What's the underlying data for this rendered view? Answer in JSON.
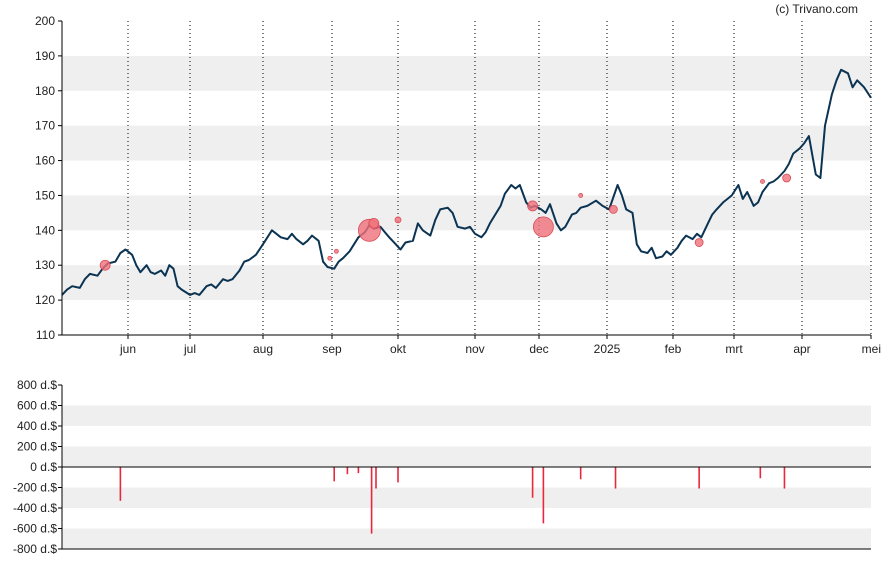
{
  "credit": "(c) Trivano.com",
  "colors": {
    "price_line": "#0b3352",
    "marker": "#f0707a",
    "marker_stroke": "#d94a56",
    "bar": "#e8283c",
    "band": "#efefef",
    "axis": "#000000",
    "vgrid": "#000000"
  },
  "chart_data": [
    {
      "type": "line",
      "title": "",
      "xlabel": "",
      "ylabel": "",
      "ylim": [
        110,
        200
      ],
      "y_ticks": [
        "110",
        "120",
        "130",
        "140",
        "150",
        "160",
        "170",
        "180",
        "190",
        "200"
      ],
      "x_ticks": [
        "jun",
        "jul",
        "aug",
        "sep",
        "okt",
        "nov",
        "dec",
        "2025",
        "feb",
        "mrt",
        "apr",
        "mei"
      ],
      "x_range": [
        "2024-05-06",
        "2025-05-01"
      ],
      "grid": "horizontal bands + dotted vertical month lines",
      "series": [
        {
          "values": [
            [
              "2024-05-06",
              121.5
            ],
            [
              "2024-05-08",
              123
            ],
            [
              "2024-05-10",
              124
            ],
            [
              "2024-05-13",
              123.5
            ],
            [
              "2024-05-15",
              126
            ],
            [
              "2024-05-17",
              127.5
            ],
            [
              "2024-05-20",
              127
            ],
            [
              "2024-05-22",
              129
            ],
            [
              "2024-05-24",
              130.5
            ],
            [
              "2024-05-27",
              131
            ],
            [
              "2024-05-29",
              133.5
            ],
            [
              "2024-05-31",
              134.5
            ],
            [
              "2024-06-03",
              133
            ],
            [
              "2024-06-05",
              130
            ],
            [
              "2024-06-07",
              128
            ],
            [
              "2024-06-10",
              130
            ],
            [
              "2024-06-12",
              128
            ],
            [
              "2024-06-14",
              127.5
            ],
            [
              "2024-06-17",
              128.5
            ],
            [
              "2024-06-19",
              127
            ],
            [
              "2024-06-21",
              130
            ],
            [
              "2024-06-23",
              129
            ],
            [
              "2024-06-25",
              124
            ],
            [
              "2024-06-27",
              123
            ],
            [
              "2024-07-01",
              121.5
            ],
            [
              "2024-07-03",
              122
            ],
            [
              "2024-07-05",
              121.5
            ],
            [
              "2024-07-08",
              124
            ],
            [
              "2024-07-10",
              124.5
            ],
            [
              "2024-07-12",
              123.5
            ],
            [
              "2024-07-15",
              126
            ],
            [
              "2024-07-17",
              125.5
            ],
            [
              "2024-07-19",
              126
            ],
            [
              "2024-07-22",
              128.5
            ],
            [
              "2024-07-24",
              131
            ],
            [
              "2024-07-26",
              131.5
            ],
            [
              "2024-07-29",
              133
            ],
            [
              "2024-07-31",
              135
            ],
            [
              "2024-08-02",
              137
            ],
            [
              "2024-08-05",
              140
            ],
            [
              "2024-08-07",
              139
            ],
            [
              "2024-08-09",
              138
            ],
            [
              "2024-08-12",
              137.5
            ],
            [
              "2024-08-14",
              139
            ],
            [
              "2024-08-16",
              137.5
            ],
            [
              "2024-08-19",
              136
            ],
            [
              "2024-08-21",
              137
            ],
            [
              "2024-08-23",
              138.5
            ],
            [
              "2024-08-26",
              137
            ],
            [
              "2024-08-28",
              131
            ],
            [
              "2024-08-30",
              129.5
            ],
            [
              "2024-09-02",
              129
            ],
            [
              "2024-09-04",
              131
            ],
            [
              "2024-09-06",
              132
            ],
            [
              "2024-09-09",
              134
            ],
            [
              "2024-09-11",
              136
            ],
            [
              "2024-09-13",
              138
            ],
            [
              "2024-09-16",
              139.5
            ],
            [
              "2024-09-18",
              141.5
            ],
            [
              "2024-09-20",
              140.5
            ],
            [
              "2024-09-23",
              141
            ],
            [
              "2024-09-25",
              139.5
            ],
            [
              "2024-09-27",
              138
            ],
            [
              "2024-09-30",
              136
            ],
            [
              "2024-10-02",
              134.5
            ],
            [
              "2024-10-04",
              136.5
            ],
            [
              "2024-10-07",
              137
            ],
            [
              "2024-10-09",
              142
            ],
            [
              "2024-10-11",
              140
            ],
            [
              "2024-10-14",
              138.5
            ],
            [
              "2024-10-16",
              143
            ],
            [
              "2024-10-18",
              146
            ],
            [
              "2024-10-21",
              146.5
            ],
            [
              "2024-10-23",
              145
            ],
            [
              "2024-10-25",
              141
            ],
            [
              "2024-10-28",
              140.5
            ],
            [
              "2024-10-30",
              141
            ],
            [
              "2024-11-01",
              139
            ],
            [
              "2024-11-04",
              138
            ],
            [
              "2024-11-06",
              139.5
            ],
            [
              "2024-11-08",
              142
            ],
            [
              "2024-11-11",
              145
            ],
            [
              "2024-11-13",
              147
            ],
            [
              "2024-11-15",
              150.5
            ],
            [
              "2024-11-18",
              153
            ],
            [
              "2024-11-20",
              152
            ],
            [
              "2024-11-22",
              153
            ],
            [
              "2024-11-25",
              148
            ],
            [
              "2024-11-27",
              146.5
            ],
            [
              "2024-11-29",
              147
            ],
            [
              "2024-12-02",
              146
            ],
            [
              "2024-12-04",
              145
            ],
            [
              "2024-12-06",
              147.5
            ],
            [
              "2024-12-09",
              142
            ],
            [
              "2024-12-11",
              140
            ],
            [
              "2024-12-13",
              141
            ],
            [
              "2024-12-16",
              144.5
            ],
            [
              "2024-12-18",
              145
            ],
            [
              "2024-12-20",
              146.5
            ],
            [
              "2024-12-23",
              147
            ],
            [
              "2024-12-27",
              148.5
            ],
            [
              "2024-12-30",
              147
            ],
            [
              "2025-01-02",
              146
            ],
            [
              "2025-01-06",
              153
            ],
            [
              "2025-01-08",
              150
            ],
            [
              "2025-01-10",
              146
            ],
            [
              "2025-01-13",
              145
            ],
            [
              "2025-01-15",
              136
            ],
            [
              "2025-01-17",
              134
            ],
            [
              "2025-01-20",
              133.5
            ],
            [
              "2025-01-22",
              135
            ],
            [
              "2025-01-24",
              132
            ],
            [
              "2025-01-27",
              132.5
            ],
            [
              "2025-01-29",
              134
            ],
            [
              "2025-01-31",
              133
            ],
            [
              "2025-02-03",
              135
            ],
            [
              "2025-02-05",
              137
            ],
            [
              "2025-02-07",
              138.5
            ],
            [
              "2025-02-10",
              137.5
            ],
            [
              "2025-02-12",
              139
            ],
            [
              "2025-02-14",
              138
            ],
            [
              "2025-02-17",
              142
            ],
            [
              "2025-02-19",
              144.5
            ],
            [
              "2025-02-21",
              146
            ],
            [
              "2025-02-24",
              148
            ],
            [
              "2025-02-26",
              149
            ],
            [
              "2025-02-28",
              150
            ],
            [
              "2025-03-03",
              153
            ],
            [
              "2025-03-05",
              149
            ],
            [
              "2025-03-07",
              151
            ],
            [
              "2025-03-10",
              147
            ],
            [
              "2025-03-12",
              148
            ],
            [
              "2025-03-14",
              151
            ],
            [
              "2025-03-17",
              153.5
            ],
            [
              "2025-03-19",
              154
            ],
            [
              "2025-03-21",
              155
            ],
            [
              "2025-03-24",
              157
            ],
            [
              "2025-03-26",
              159
            ],
            [
              "2025-03-28",
              162
            ],
            [
              "2025-03-31",
              163.5
            ],
            [
              "2025-04-02",
              165
            ],
            [
              "2025-04-04",
              167
            ],
            [
              "2025-04-07",
              156
            ],
            [
              "2025-04-09",
              155
            ],
            [
              "2025-04-11",
              170
            ],
            [
              "2025-04-14",
              179
            ],
            [
              "2025-04-16",
              183
            ],
            [
              "2025-04-18",
              186
            ],
            [
              "2025-04-21",
              185
            ],
            [
              "2025-04-23",
              181
            ],
            [
              "2025-04-25",
              183
            ],
            [
              "2025-04-28",
              181
            ],
            [
              "2025-05-01",
              178
            ]
          ]
        }
      ],
      "markers": [
        {
          "date": "2024-05-23",
          "value": 130,
          "size": 5
        },
        {
          "date": "2024-08-31",
          "value": 132,
          "size": 2
        },
        {
          "date": "2024-09-03",
          "value": 134,
          "size": 2
        },
        {
          "date": "2024-09-18",
          "value": 140,
          "size": 11
        },
        {
          "date": "2024-09-20",
          "value": 142,
          "size": 5
        },
        {
          "date": "2024-10-01",
          "value": 143,
          "size": 3
        },
        {
          "date": "2024-11-28",
          "value": 147,
          "size": 5
        },
        {
          "date": "2024-12-03",
          "value": 141,
          "size": 10
        },
        {
          "date": "2024-12-20",
          "value": 150,
          "size": 2
        },
        {
          "date": "2025-01-04",
          "value": 146,
          "size": 4
        },
        {
          "date": "2025-02-13",
          "value": 136.5,
          "size": 4
        },
        {
          "date": "2025-03-14",
          "value": 154,
          "size": 2
        },
        {
          "date": "2025-03-25",
          "value": 155,
          "size": 4
        }
      ]
    },
    {
      "type": "bar",
      "title": "",
      "xlabel": "",
      "ylabel": "",
      "ylim": [
        -800,
        800
      ],
      "y_ticks": [
        "800 d.$",
        "600 d.$",
        "400 d.$",
        "200 d.$",
        "0 d.$",
        "-200 d.$",
        "-400 d.$",
        "-600 d.$",
        "-800 d.$"
      ],
      "grid": "horizontal bands",
      "series": [
        {
          "values": [
            [
              "2024-05-29",
              -330
            ],
            [
              "2024-09-02",
              -140
            ],
            [
              "2024-09-08",
              -70
            ],
            [
              "2024-09-13",
              -60
            ],
            [
              "2024-09-19",
              -650
            ],
            [
              "2024-09-21",
              -210
            ],
            [
              "2024-10-01",
              -150
            ],
            [
              "2024-11-28",
              -300
            ],
            [
              "2024-12-03",
              -550
            ],
            [
              "2024-12-20",
              -120
            ],
            [
              "2025-01-05",
              -210
            ],
            [
              "2025-02-13",
              -210
            ],
            [
              "2025-03-13",
              -110
            ],
            [
              "2025-03-24",
              -210
            ]
          ]
        }
      ]
    }
  ]
}
